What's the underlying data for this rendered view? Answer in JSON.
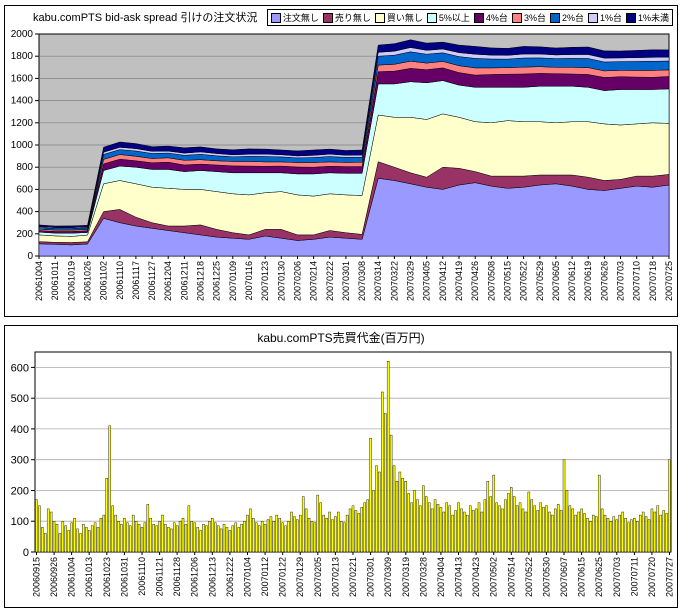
{
  "chart_data": [
    {
      "type": "area",
      "stacked": true,
      "title": "kabu.comPTS bid-ask spread 引けの注文状況",
      "legend_position": "top",
      "plot_bg": "#C0C0C0",
      "grid": true,
      "xlabel": "",
      "ylabel": "",
      "ylim": [
        0,
        2000
      ],
      "ytick": 200,
      "categories": [
        "20061004",
        "20061011",
        "20061019",
        "20061026",
        "20061102",
        "20061110",
        "20061117",
        "20061127",
        "20061204",
        "20061211",
        "20061218",
        "20061225",
        "20070109",
        "20070116",
        "20070123",
        "20070130",
        "20070206",
        "20070214",
        "20070222",
        "20070301",
        "20070308",
        "20070314",
        "20070322",
        "20070329",
        "20070405",
        "20070412",
        "20070419",
        "20070426",
        "20070508",
        "20070515",
        "20070522",
        "20070529",
        "20070605",
        "20070612",
        "20070619",
        "20070626",
        "20070703",
        "20070710",
        "20070718",
        "20070725"
      ],
      "series": [
        {
          "name": "注文無し",
          "color": "#9999FF",
          "values": [
            110,
            105,
            100,
            108,
            340,
            300,
            270,
            250,
            230,
            210,
            190,
            170,
            160,
            150,
            180,
            160,
            140,
            150,
            170,
            160,
            150,
            700,
            680,
            650,
            620,
            600,
            640,
            660,
            630,
            610,
            620,
            640,
            650,
            630,
            600,
            590,
            610,
            630,
            620,
            640
          ]
        },
        {
          "name": "売り無し",
          "color": "#993366",
          "values": [
            20,
            18,
            22,
            20,
            60,
            120,
            80,
            50,
            40,
            60,
            90,
            70,
            50,
            40,
            60,
            80,
            50,
            40,
            60,
            50,
            45,
            150,
            120,
            100,
            90,
            200,
            150,
            100,
            90,
            110,
            100,
            90,
            80,
            100,
            110,
            90,
            80,
            90,
            100,
            95
          ]
        },
        {
          "name": "買い無し",
          "color": "#FFFFCC",
          "values": [
            60,
            58,
            55,
            60,
            250,
            260,
            300,
            320,
            340,
            330,
            320,
            340,
            350,
            360,
            330,
            340,
            360,
            350,
            330,
            340,
            350,
            420,
            450,
            500,
            520,
            480,
            460,
            450,
            480,
            500,
            490,
            480,
            470,
            480,
            500,
            510,
            490,
            470,
            480,
            460
          ]
        },
        {
          "name": "5%以上",
          "color": "#CCFFFF",
          "values": [
            25,
            25,
            28,
            24,
            120,
            130,
            150,
            160,
            170,
            160,
            170,
            180,
            190,
            200,
            180,
            170,
            190,
            200,
            190,
            195,
            200,
            280,
            300,
            320,
            330,
            300,
            290,
            310,
            320,
            300,
            310,
            320,
            330,
            320,
            310,
            300,
            320,
            310,
            300,
            310
          ]
        },
        {
          "name": "4%台",
          "color": "#660066",
          "values": [
            15,
            15,
            16,
            15,
            60,
            62,
            58,
            60,
            65,
            60,
            58,
            60,
            62,
            60,
            58,
            60,
            62,
            60,
            58,
            60,
            60,
            110,
            115,
            120,
            118,
            115,
            112,
            110,
            115,
            118,
            120,
            115,
            112,
            110,
            115,
            118,
            115,
            112,
            110,
            112
          ]
        },
        {
          "name": "3%台",
          "color": "#FF8080",
          "values": [
            12,
            12,
            12,
            12,
            40,
            42,
            40,
            38,
            40,
            42,
            40,
            38,
            40,
            42,
            40,
            38,
            40,
            42,
            40,
            38,
            40,
            60,
            62,
            65,
            60,
            58,
            62,
            65,
            60,
            58,
            62,
            60,
            58,
            60,
            62,
            60,
            58,
            60,
            62,
            60
          ]
        },
        {
          "name": "2%台",
          "color": "#0066CC",
          "values": [
            15,
            15,
            15,
            15,
            45,
            45,
            48,
            45,
            42,
            45,
            48,
            45,
            42,
            45,
            48,
            45,
            42,
            45,
            48,
            45,
            45,
            80,
            82,
            85,
            80,
            78,
            82,
            85,
            80,
            78,
            82,
            80,
            78,
            80,
            82,
            80,
            78,
            80,
            82,
            80
          ]
        },
        {
          "name": "1%台",
          "color": "#CCCCFF",
          "values": [
            8,
            8,
            8,
            8,
            20,
            20,
            22,
            20,
            18,
            20,
            22,
            20,
            18,
            20,
            22,
            20,
            18,
            20,
            22,
            20,
            20,
            35,
            36,
            38,
            35,
            34,
            36,
            38,
            35,
            34,
            36,
            35,
            34,
            35,
            36,
            35,
            34,
            35,
            36,
            35
          ]
        },
        {
          "name": "1%未満",
          "color": "#000080",
          "values": [
            15,
            14,
            15,
            15,
            45,
            48,
            45,
            42,
            45,
            48,
            45,
            42,
            45,
            48,
            45,
            42,
            45,
            48,
            45,
            42,
            45,
            65,
            68,
            70,
            65,
            62,
            68,
            70,
            65,
            62,
            68,
            65,
            62,
            65,
            68,
            65,
            62,
            65,
            68,
            65
          ]
        }
      ]
    },
    {
      "type": "bar",
      "title": "kabu.comPTS売買代金(百万円)",
      "bar_color": "#FFFF00",
      "plot_bg": "#FFFFFF",
      "grid": true,
      "ylim": [
        0,
        650
      ],
      "ytick": 100,
      "ymax_label": 600,
      "tick_every": 6,
      "tick_labels": [
        "20060915",
        "20060926",
        "20061004",
        "20061013",
        "20061023",
        "20061031",
        "20061110",
        "20061121",
        "20061128",
        "20061206",
        "20061213",
        "20061222",
        "20070104",
        "20070112",
        "20070122",
        "20070129",
        "20070205",
        "20070213",
        "20070221",
        "20070301",
        "20070309",
        "20070319",
        "20070328",
        "20070404",
        "20070413",
        "20070423",
        "20070502",
        "20070514",
        "20070522",
        "20070530",
        "20070607",
        "20070615",
        "20070625",
        "20070703",
        "20070711",
        "20070720",
        "20070727"
      ],
      "values": [
        170,
        150,
        80,
        60,
        140,
        130,
        100,
        90,
        60,
        100,
        85,
        70,
        95,
        110,
        75,
        60,
        90,
        80,
        70,
        85,
        95,
        80,
        110,
        120,
        240,
        410,
        150,
        120,
        100,
        90,
        110,
        95,
        85,
        120,
        100,
        90,
        80,
        95,
        155,
        110,
        90,
        85,
        100,
        120,
        90,
        80,
        75,
        95,
        85,
        100,
        110,
        90,
        150,
        100,
        95,
        80,
        70,
        90,
        85,
        100,
        110,
        95,
        85,
        75,
        90,
        80,
        70,
        85,
        95,
        80,
        90,
        100,
        120,
        140,
        110,
        95,
        85,
        100,
        90,
        105,
        115,
        100,
        120,
        110,
        95,
        85,
        100,
        130,
        115,
        105,
        120,
        180,
        140,
        110,
        100,
        95,
        185,
        160,
        120,
        110,
        130,
        105,
        115,
        130,
        100,
        95,
        120,
        140,
        150,
        135,
        125,
        145,
        160,
        170,
        370,
        200,
        280,
        260,
        520,
        450,
        620,
        380,
        280,
        230,
        260,
        240,
        230,
        190,
        160,
        200,
        170,
        150,
        215,
        180,
        160,
        140,
        170,
        155,
        145,
        130,
        160,
        150,
        120,
        135,
        160,
        140,
        130,
        120,
        150,
        135,
        140,
        160,
        130,
        170,
        230,
        180,
        250,
        160,
        150,
        140,
        170,
        190,
        210,
        180,
        150,
        160,
        140,
        130,
        195,
        170,
        150,
        135,
        160,
        145,
        150,
        130,
        120,
        140,
        155,
        135,
        300,
        200,
        150,
        140,
        120,
        130,
        140,
        125,
        110,
        100,
        120,
        115,
        250,
        140,
        120,
        110,
        100,
        115,
        105,
        120,
        130,
        110,
        95,
        105,
        110,
        100,
        120,
        130,
        115,
        105,
        140,
        130,
        150,
        120,
        135,
        125,
        300
      ]
    }
  ]
}
